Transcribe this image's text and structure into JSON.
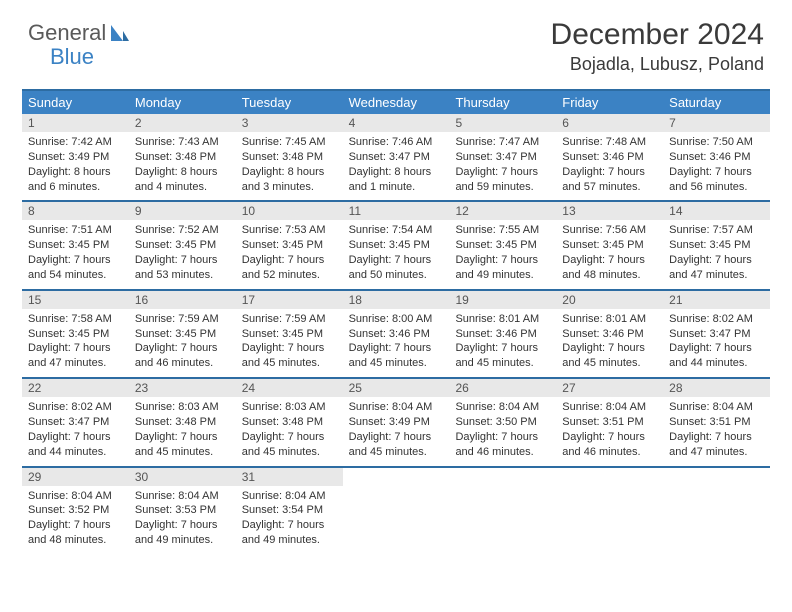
{
  "brand": {
    "word1": "General",
    "word2": "Blue",
    "logo_color": "#3b82c4",
    "text_muted": "#5a5a5a"
  },
  "title": "December 2024",
  "location": "Bojadla, Lubusz, Poland",
  "colors": {
    "header_bg": "#3b82c4",
    "header_text": "#ffffff",
    "rule": "#2d6ca2",
    "daynum_bg": "#e8e8e8",
    "body_text": "#333333"
  },
  "weekdays": [
    "Sunday",
    "Monday",
    "Tuesday",
    "Wednesday",
    "Thursday",
    "Friday",
    "Saturday"
  ],
  "weeks": [
    [
      {
        "n": "1",
        "sr": "Sunrise: 7:42 AM",
        "ss": "Sunset: 3:49 PM",
        "dl": "Daylight: 8 hours and 6 minutes."
      },
      {
        "n": "2",
        "sr": "Sunrise: 7:43 AM",
        "ss": "Sunset: 3:48 PM",
        "dl": "Daylight: 8 hours and 4 minutes."
      },
      {
        "n": "3",
        "sr": "Sunrise: 7:45 AM",
        "ss": "Sunset: 3:48 PM",
        "dl": "Daylight: 8 hours and 3 minutes."
      },
      {
        "n": "4",
        "sr": "Sunrise: 7:46 AM",
        "ss": "Sunset: 3:47 PM",
        "dl": "Daylight: 8 hours and 1 minute."
      },
      {
        "n": "5",
        "sr": "Sunrise: 7:47 AM",
        "ss": "Sunset: 3:47 PM",
        "dl": "Daylight: 7 hours and 59 minutes."
      },
      {
        "n": "6",
        "sr": "Sunrise: 7:48 AM",
        "ss": "Sunset: 3:46 PM",
        "dl": "Daylight: 7 hours and 57 minutes."
      },
      {
        "n": "7",
        "sr": "Sunrise: 7:50 AM",
        "ss": "Sunset: 3:46 PM",
        "dl": "Daylight: 7 hours and 56 minutes."
      }
    ],
    [
      {
        "n": "8",
        "sr": "Sunrise: 7:51 AM",
        "ss": "Sunset: 3:45 PM",
        "dl": "Daylight: 7 hours and 54 minutes."
      },
      {
        "n": "9",
        "sr": "Sunrise: 7:52 AM",
        "ss": "Sunset: 3:45 PM",
        "dl": "Daylight: 7 hours and 53 minutes."
      },
      {
        "n": "10",
        "sr": "Sunrise: 7:53 AM",
        "ss": "Sunset: 3:45 PM",
        "dl": "Daylight: 7 hours and 52 minutes."
      },
      {
        "n": "11",
        "sr": "Sunrise: 7:54 AM",
        "ss": "Sunset: 3:45 PM",
        "dl": "Daylight: 7 hours and 50 minutes."
      },
      {
        "n": "12",
        "sr": "Sunrise: 7:55 AM",
        "ss": "Sunset: 3:45 PM",
        "dl": "Daylight: 7 hours and 49 minutes."
      },
      {
        "n": "13",
        "sr": "Sunrise: 7:56 AM",
        "ss": "Sunset: 3:45 PM",
        "dl": "Daylight: 7 hours and 48 minutes."
      },
      {
        "n": "14",
        "sr": "Sunrise: 7:57 AM",
        "ss": "Sunset: 3:45 PM",
        "dl": "Daylight: 7 hours and 47 minutes."
      }
    ],
    [
      {
        "n": "15",
        "sr": "Sunrise: 7:58 AM",
        "ss": "Sunset: 3:45 PM",
        "dl": "Daylight: 7 hours and 47 minutes."
      },
      {
        "n": "16",
        "sr": "Sunrise: 7:59 AM",
        "ss": "Sunset: 3:45 PM",
        "dl": "Daylight: 7 hours and 46 minutes."
      },
      {
        "n": "17",
        "sr": "Sunrise: 7:59 AM",
        "ss": "Sunset: 3:45 PM",
        "dl": "Daylight: 7 hours and 45 minutes."
      },
      {
        "n": "18",
        "sr": "Sunrise: 8:00 AM",
        "ss": "Sunset: 3:46 PM",
        "dl": "Daylight: 7 hours and 45 minutes."
      },
      {
        "n": "19",
        "sr": "Sunrise: 8:01 AM",
        "ss": "Sunset: 3:46 PM",
        "dl": "Daylight: 7 hours and 45 minutes."
      },
      {
        "n": "20",
        "sr": "Sunrise: 8:01 AM",
        "ss": "Sunset: 3:46 PM",
        "dl": "Daylight: 7 hours and 45 minutes."
      },
      {
        "n": "21",
        "sr": "Sunrise: 8:02 AM",
        "ss": "Sunset: 3:47 PM",
        "dl": "Daylight: 7 hours and 44 minutes."
      }
    ],
    [
      {
        "n": "22",
        "sr": "Sunrise: 8:02 AM",
        "ss": "Sunset: 3:47 PM",
        "dl": "Daylight: 7 hours and 44 minutes."
      },
      {
        "n": "23",
        "sr": "Sunrise: 8:03 AM",
        "ss": "Sunset: 3:48 PM",
        "dl": "Daylight: 7 hours and 45 minutes."
      },
      {
        "n": "24",
        "sr": "Sunrise: 8:03 AM",
        "ss": "Sunset: 3:48 PM",
        "dl": "Daylight: 7 hours and 45 minutes."
      },
      {
        "n": "25",
        "sr": "Sunrise: 8:04 AM",
        "ss": "Sunset: 3:49 PM",
        "dl": "Daylight: 7 hours and 45 minutes."
      },
      {
        "n": "26",
        "sr": "Sunrise: 8:04 AM",
        "ss": "Sunset: 3:50 PM",
        "dl": "Daylight: 7 hours and 46 minutes."
      },
      {
        "n": "27",
        "sr": "Sunrise: 8:04 AM",
        "ss": "Sunset: 3:51 PM",
        "dl": "Daylight: 7 hours and 46 minutes."
      },
      {
        "n": "28",
        "sr": "Sunrise: 8:04 AM",
        "ss": "Sunset: 3:51 PM",
        "dl": "Daylight: 7 hours and 47 minutes."
      }
    ],
    [
      {
        "n": "29",
        "sr": "Sunrise: 8:04 AM",
        "ss": "Sunset: 3:52 PM",
        "dl": "Daylight: 7 hours and 48 minutes."
      },
      {
        "n": "30",
        "sr": "Sunrise: 8:04 AM",
        "ss": "Sunset: 3:53 PM",
        "dl": "Daylight: 7 hours and 49 minutes."
      },
      {
        "n": "31",
        "sr": "Sunrise: 8:04 AM",
        "ss": "Sunset: 3:54 PM",
        "dl": "Daylight: 7 hours and 49 minutes."
      },
      null,
      null,
      null,
      null
    ]
  ]
}
